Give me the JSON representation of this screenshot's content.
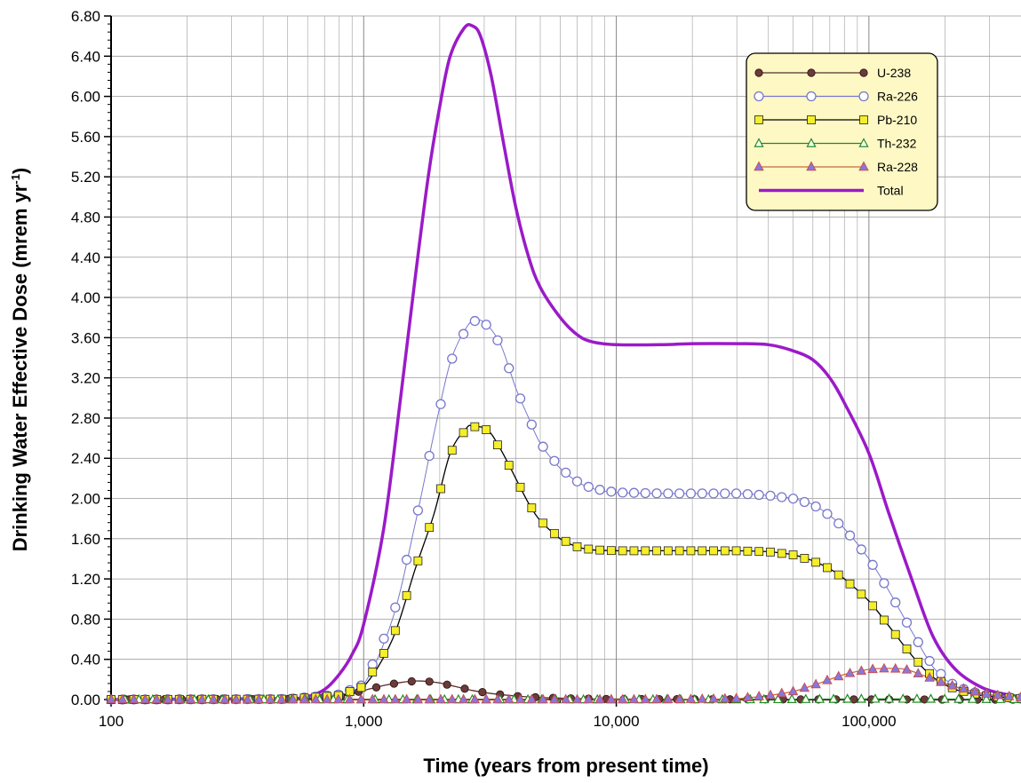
{
  "chart_data": {
    "type": "line",
    "xlabel": "Time (years from present time)",
    "ylabel_main": "Drinking Water Effective Dose (mrem yr",
    "ylabel_sup": "-1",
    "ylabel_tail": ")",
    "x_scale": "log",
    "xlim": [
      100,
      400000
    ],
    "ylim": [
      0,
      6.8
    ],
    "x_ticks": [
      100,
      1000,
      10000,
      100000
    ],
    "x_tick_labels": [
      "100",
      "1,000",
      "10,000",
      "100,000"
    ],
    "y_ticks": [
      0,
      0.4,
      0.8,
      1.2,
      1.6,
      2.0,
      2.4,
      2.8,
      3.2,
      3.6,
      4.0,
      4.4,
      4.8,
      5.2,
      5.6,
      6.0,
      6.4,
      6.8
    ],
    "y_tick_labels": [
      "0.00",
      "0.40",
      "0.80",
      "1.20",
      "1.60",
      "2.00",
      "2.40",
      "2.80",
      "3.20",
      "3.60",
      "4.00",
      "4.40",
      "4.80",
      "5.20",
      "5.60",
      "6.00",
      "6.40",
      "6.80"
    ],
    "grid": true,
    "legend_position": "top-right",
    "series": [
      {
        "name": "U-238",
        "color": "#5a2d2d",
        "marker": "filled-circle",
        "marker_fill": "#6b3a3a",
        "points": [
          [
            100,
            0
          ],
          [
            500,
            0.005
          ],
          [
            800,
            0.03
          ],
          [
            1000,
            0.09
          ],
          [
            1200,
            0.14
          ],
          [
            1400,
            0.17
          ],
          [
            1600,
            0.185
          ],
          [
            1800,
            0.18
          ],
          [
            2000,
            0.165
          ],
          [
            2300,
            0.13
          ],
          [
            2700,
            0.09
          ],
          [
            3200,
            0.06
          ],
          [
            4000,
            0.035
          ],
          [
            5000,
            0.02
          ],
          [
            7000,
            0.01
          ],
          [
            10000,
            0.005
          ],
          [
            30000,
            0.002
          ],
          [
            100000,
            0.001
          ],
          [
            400000,
            0
          ]
        ]
      },
      {
        "name": "Ra-226",
        "color": "#7777cc",
        "marker": "open-circle",
        "marker_fill": "none",
        "points": [
          [
            100,
            0
          ],
          [
            500,
            0.005
          ],
          [
            800,
            0.05
          ],
          [
            1000,
            0.15
          ],
          [
            1300,
            0.8
          ],
          [
            1600,
            1.75
          ],
          [
            1900,
            2.65
          ],
          [
            2200,
            3.35
          ],
          [
            2550,
            3.7
          ],
          [
            2800,
            3.78
          ],
          [
            3100,
            3.72
          ],
          [
            3500,
            3.52
          ],
          [
            4000,
            3.1
          ],
          [
            4500,
            2.8
          ],
          [
            5000,
            2.55
          ],
          [
            6000,
            2.3
          ],
          [
            7000,
            2.17
          ],
          [
            8000,
            2.1
          ],
          [
            10000,
            2.06
          ],
          [
            15000,
            2.05
          ],
          [
            20000,
            2.05
          ],
          [
            30000,
            2.05
          ],
          [
            40000,
            2.03
          ],
          [
            50000,
            2.0
          ],
          [
            60000,
            1.94
          ],
          [
            70000,
            1.83
          ],
          [
            80000,
            1.7
          ],
          [
            100000,
            1.4
          ],
          [
            120000,
            1.08
          ],
          [
            150000,
            0.65
          ],
          [
            180000,
            0.32
          ],
          [
            220000,
            0.13
          ],
          [
            280000,
            0.05
          ],
          [
            400000,
            0.01
          ]
        ]
      },
      {
        "name": "Pb-210",
        "color": "#000000",
        "marker": "square",
        "marker_fill": "#f5ee2a",
        "points": [
          [
            100,
            0
          ],
          [
            500,
            0.004
          ],
          [
            800,
            0.04
          ],
          [
            1000,
            0.13
          ],
          [
            1300,
            0.6
          ],
          [
            1600,
            1.3
          ],
          [
            1900,
            1.85
          ],
          [
            2200,
            2.45
          ],
          [
            2550,
            2.7
          ],
          [
            2700,
            2.72
          ],
          [
            3100,
            2.68
          ],
          [
            3500,
            2.48
          ],
          [
            4000,
            2.2
          ],
          [
            4500,
            1.95
          ],
          [
            5000,
            1.78
          ],
          [
            6000,
            1.6
          ],
          [
            7000,
            1.52
          ],
          [
            8000,
            1.49
          ],
          [
            10000,
            1.48
          ],
          [
            15000,
            1.48
          ],
          [
            20000,
            1.48
          ],
          [
            30000,
            1.48
          ],
          [
            40000,
            1.47
          ],
          [
            50000,
            1.44
          ],
          [
            60000,
            1.38
          ],
          [
            70000,
            1.3
          ],
          [
            80000,
            1.2
          ],
          [
            100000,
            0.98
          ],
          [
            120000,
            0.73
          ],
          [
            150000,
            0.42
          ],
          [
            180000,
            0.22
          ],
          [
            220000,
            0.1
          ],
          [
            280000,
            0.04
          ],
          [
            400000,
            0.01
          ]
        ]
      },
      {
        "name": "Th-232",
        "color": "#228b22",
        "marker": "open-triangle",
        "marker_fill": "none",
        "points": [
          [
            100,
            0
          ],
          [
            1000,
            0
          ],
          [
            10000,
            0
          ],
          [
            30000,
            0
          ],
          [
            50000,
            0.002
          ],
          [
            80000,
            0.005
          ],
          [
            120000,
            0.006
          ],
          [
            180000,
            0.005
          ],
          [
            300000,
            0.003
          ],
          [
            400000,
            0.002
          ]
        ]
      },
      {
        "name": "Ra-228",
        "color": "#cc6a3a",
        "marker": "filled-triangle",
        "marker_fill": "#8877dd",
        "points": [
          [
            100,
            0
          ],
          [
            1000,
            0
          ],
          [
            10000,
            0
          ],
          [
            20000,
            0.003
          ],
          [
            30000,
            0.01
          ],
          [
            40000,
            0.04
          ],
          [
            50000,
            0.08
          ],
          [
            60000,
            0.14
          ],
          [
            70000,
            0.2
          ],
          [
            80000,
            0.25
          ],
          [
            100000,
            0.3
          ],
          [
            120000,
            0.31
          ],
          [
            140000,
            0.3
          ],
          [
            160000,
            0.25
          ],
          [
            200000,
            0.16
          ],
          [
            250000,
            0.09
          ],
          [
            300000,
            0.05
          ],
          [
            400000,
            0.02
          ]
        ]
      },
      {
        "name": "Total",
        "color": "#9b1ac8",
        "marker": "none",
        "marker_fill": "none",
        "points": [
          [
            100,
            0
          ],
          [
            500,
            0.01
          ],
          [
            600,
            0.03
          ],
          [
            700,
            0.1
          ],
          [
            800,
            0.25
          ],
          [
            900,
            0.45
          ],
          [
            1000,
            0.75
          ],
          [
            1200,
            1.7
          ],
          [
            1400,
            3.0
          ],
          [
            1600,
            4.2
          ],
          [
            1800,
            5.2
          ],
          [
            2000,
            5.9
          ],
          [
            2200,
            6.4
          ],
          [
            2500,
            6.68
          ],
          [
            2700,
            6.7
          ],
          [
            2900,
            6.6
          ],
          [
            3200,
            6.2
          ],
          [
            3600,
            5.5
          ],
          [
            4000,
            4.9
          ],
          [
            4500,
            4.4
          ],
          [
            5000,
            4.1
          ],
          [
            6000,
            3.8
          ],
          [
            7000,
            3.63
          ],
          [
            8000,
            3.56
          ],
          [
            10000,
            3.53
          ],
          [
            15000,
            3.53
          ],
          [
            20000,
            3.54
          ],
          [
            30000,
            3.54
          ],
          [
            40000,
            3.53
          ],
          [
            50000,
            3.47
          ],
          [
            60000,
            3.38
          ],
          [
            70000,
            3.2
          ],
          [
            80000,
            2.95
          ],
          [
            100000,
            2.45
          ],
          [
            120000,
            1.85
          ],
          [
            150000,
            1.15
          ],
          [
            180000,
            0.62
          ],
          [
            220000,
            0.3
          ],
          [
            280000,
            0.12
          ],
          [
            350000,
            0.05
          ],
          [
            400000,
            0.03
          ]
        ]
      }
    ]
  }
}
